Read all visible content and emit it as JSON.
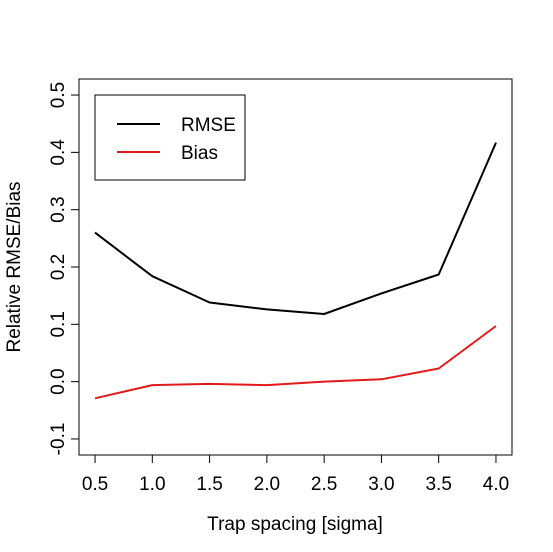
{
  "chart_data": {
    "type": "line",
    "title": "",
    "xlabel": "Trap spacing [sigma]",
    "ylabel": "Relative RMSE/Bias",
    "x": [
      0.5,
      1.0,
      1.5,
      2.0,
      2.5,
      3.0,
      3.5,
      4.0
    ],
    "x_tick_labels": [
      "0.5",
      "1.0",
      "1.5",
      "2.0",
      "2.5",
      "3.0",
      "3.5",
      "4.0"
    ],
    "y_ticks": [
      -0.1,
      0.0,
      0.1,
      0.2,
      0.3,
      0.4,
      0.5
    ],
    "y_tick_labels": [
      "-0.1",
      "0.0",
      "0.1",
      "0.2",
      "0.3",
      "0.4",
      "0.5"
    ],
    "xlim": [
      0.36,
      4.14
    ],
    "ylim": [
      -0.128,
      0.528
    ],
    "grid": false,
    "legend_position": "top-left",
    "series": [
      {
        "name": "RMSE",
        "color": "#000000",
        "values": [
          0.26,
          0.184,
          0.138,
          0.126,
          0.118,
          0.154,
          0.187,
          0.417
        ]
      },
      {
        "name": "Bias",
        "color": "#e31a1c",
        "values": [
          -0.029,
          -0.006,
          -0.004,
          -0.006,
          0.0,
          0.004,
          0.023,
          0.097
        ]
      }
    ]
  }
}
